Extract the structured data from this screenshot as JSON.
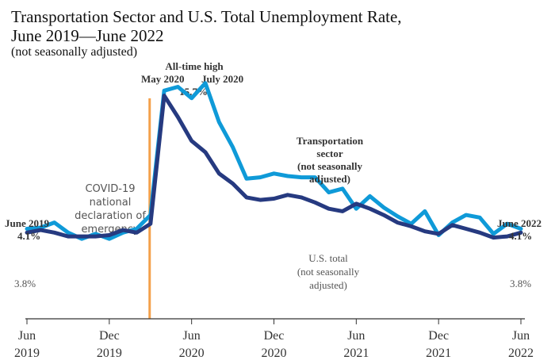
{
  "chart_data": {
    "type": "line",
    "title_line1": "Transportation Sector and U.S. Total Unemployment Rate,",
    "title_line2": "June 2019—June 2022",
    "subtitle": "(not seasonally adjusted)",
    "x": [
      "2019-06",
      "2019-07",
      "2019-08",
      "2019-09",
      "2019-10",
      "2019-11",
      "2019-12",
      "2020-01",
      "2020-02",
      "2020-03",
      "2020-04",
      "2020-05",
      "2020-06",
      "2020-07",
      "2020-08",
      "2020-09",
      "2020-10",
      "2020-11",
      "2020-12",
      "2021-01",
      "2021-02",
      "2021-03",
      "2021-04",
      "2021-05",
      "2021-06",
      "2021-07",
      "2021-08",
      "2021-09",
      "2021-10",
      "2021-11",
      "2021-12",
      "2022-01",
      "2022-02",
      "2022-03",
      "2022-04",
      "2022-05",
      "2022-06"
    ],
    "x_ticks": [
      {
        "x": "2019-06",
        "month": "Jun",
        "year": "2019"
      },
      {
        "x": "2019-12",
        "month": "Dec",
        "year": "2019"
      },
      {
        "x": "2020-06",
        "month": "Jun",
        "year": "2020"
      },
      {
        "x": "2020-12",
        "month": "Dec",
        "year": "2020"
      },
      {
        "x": "2021-06",
        "month": "Jun",
        "year": "2021"
      },
      {
        "x": "2021-12",
        "month": "Dec",
        "year": "2021"
      },
      {
        "x": "2022-06",
        "month": "Jun",
        "year": "2022"
      }
    ],
    "ylim": [
      0,
      17
    ],
    "series": [
      {
        "key": "transportation",
        "color": "#0f9ad8",
        "values": [
          4.1,
          4.2,
          4.6,
          3.8,
          3.3,
          3.7,
          3.3,
          3.8,
          4.1,
          5.2,
          15.1,
          15.4,
          14.5,
          15.7,
          12.6,
          10.6,
          8.1,
          8.2,
          8.5,
          8.3,
          8.2,
          8.2,
          7.0,
          7.3,
          5.7,
          6.7,
          5.8,
          5.1,
          4.5,
          5.5,
          3.6,
          4.6,
          5.2,
          5.0,
          3.7,
          4.5,
          4.1
        ]
      },
      {
        "key": "total",
        "color": "#263a80",
        "values": [
          3.8,
          4.0,
          3.8,
          3.5,
          3.5,
          3.5,
          3.6,
          4.0,
          3.8,
          4.5,
          14.7,
          13.0,
          11.1,
          10.2,
          8.5,
          7.7,
          6.6,
          6.4,
          6.5,
          6.8,
          6.6,
          6.2,
          5.7,
          5.5,
          6.1,
          5.7,
          5.2,
          4.6,
          4.3,
          3.9,
          3.7,
          4.4,
          4.1,
          3.8,
          3.4,
          3.5,
          3.8
        ]
      }
    ],
    "start_labels": {
      "period": "June 2019",
      "transport_value": "4.1%",
      "total_value": "3.8%"
    },
    "end_labels": {
      "period": "June 2022",
      "transport_value": "4.1%",
      "total_value": "3.8%"
    },
    "covid_line": {
      "x": "2020-03",
      "color": "#f4a04a",
      "note_lines": [
        "COVID-19",
        "national",
        "declaration of",
        "emergency"
      ]
    },
    "peak_note": {
      "line1": "All-time high",
      "line2": "15.7%",
      "left_month": "May 2020",
      "right_month": "July 2020"
    },
    "transport_label_lines": [
      "Transportation",
      "sector",
      "(not seasonally",
      "adjusted)"
    ],
    "total_label_lines": [
      "U.S. total",
      "(not seasonally",
      "adjusted)"
    ]
  }
}
